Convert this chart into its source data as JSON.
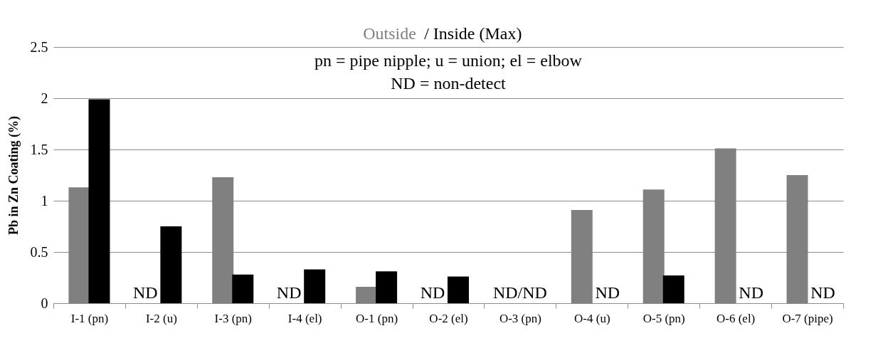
{
  "chart_data": {
    "type": "bar",
    "title": "Outside / Inside (Max)",
    "ylabel": "Pb in Zn Coating (%)",
    "categories": [
      "I-1 (pn)",
      "I-2 (u)",
      "I-3 (pn)",
      "I-4 (el)",
      "O-1 (pn)",
      "O-2 (el)",
      "O-3 (pn)",
      "O-4 (u)",
      "O-5 (pn)",
      "O-6 (el)",
      "O-7 (pipe)"
    ],
    "series": [
      {
        "color": "#808080",
        "values": [
          1.13,
          null,
          1.23,
          null,
          0.16,
          null,
          null,
          0.91,
          1.11,
          1.51,
          1.25
        ]
      },
      {
        "color": "#000000",
        "values": [
          1.99,
          0.75,
          0.28,
          0.33,
          0.31,
          0.26,
          null,
          null,
          0.27,
          null,
          null
        ]
      }
    ],
    "ylim": [
      0,
      2.5
    ],
    "yticks": [
      0,
      0.5,
      1,
      1.5,
      2,
      2.5
    ],
    "grid": "y",
    "legend": false,
    "annotations": [
      "pn = pipe nipple; u = union; el = elbow",
      "ND = non-detect",
      {
        "text": "ND",
        "x": "I-2 (u)",
        "y": 0
      },
      {
        "text": "ND",
        "x": "I-4 (el)",
        "y": 0
      },
      {
        "text": "ND",
        "x": "O-2 (el)",
        "y": 0
      },
      "ND/ND",
      {
        "text": "ND",
        "x": "O-4 (u)",
        "y": 0
      },
      {
        "text": "ND",
        "x": "O-6 (el)",
        "y": 0
      },
      {
        "text": "ND",
        "x": "O-7 (pipe)",
        "y": 0
      }
    ]
  }
}
